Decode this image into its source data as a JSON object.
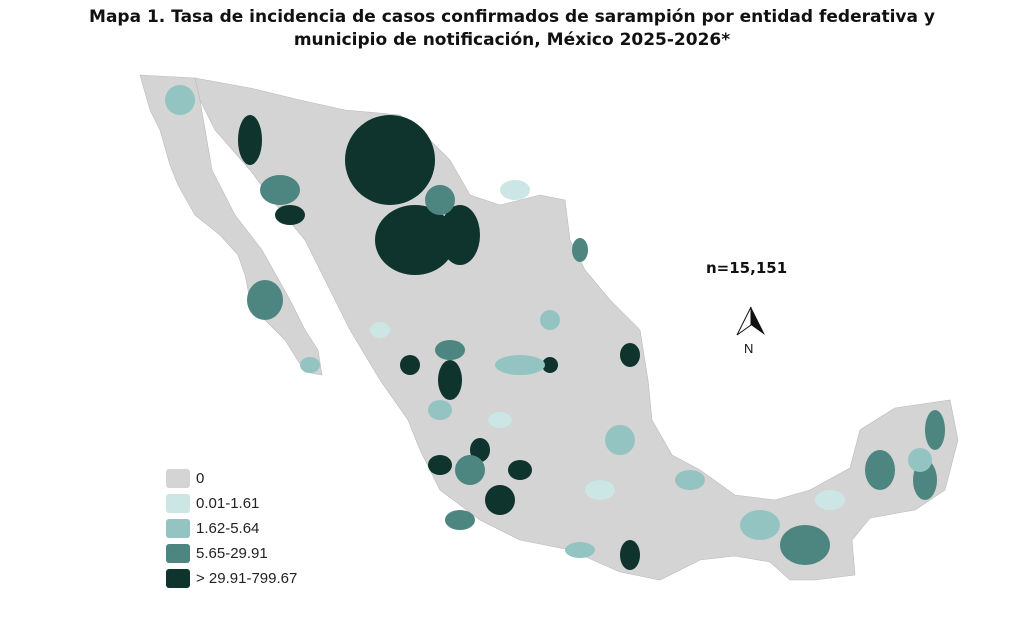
{
  "title_line1": "Mapa 1. Tasa de incidencia de casos confirmados de sarampión por entidad federativa y",
  "title_line2": "municipio de  notificación, México 2025-2026*",
  "n_label": "n=15,151",
  "north_label": "N",
  "legend": [
    {
      "label": "0",
      "color": "#d4d4d4"
    },
    {
      "label": "0.01-1.61",
      "color": "#cbe6e4"
    },
    {
      "label": "1.62-5.64",
      "color": "#93c4c2"
    },
    {
      "label": "5.65-29.91",
      "color": "#4d8580"
    },
    {
      "label": "> 29.91-799.67",
      "color": "#0f332d"
    }
  ]
}
